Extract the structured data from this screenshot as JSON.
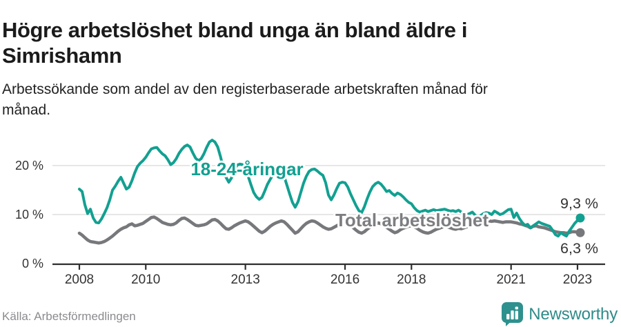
{
  "header": {
    "title_line1": "Högre arbetslöshet bland unga än bland äldre i",
    "title_line2": "Simrishamn",
    "subtitle_line1": "Arbetssökande som andel av den registerbaserade arbetskraften månad för",
    "subtitle_line2": "månad."
  },
  "footer": {
    "source": "Källa: Arbetsförmedlingen",
    "brand": "Newsworthy",
    "brand_color": "#2e8b89"
  },
  "chart_data": {
    "type": "line",
    "title": "Högre arbetslöshet bland unga än bland äldre i Simrishamn",
    "subtitle": "Arbetssökande som andel av den registerbaserade arbetskraften månad för månad.",
    "unit": "%",
    "x_start_year": 2008,
    "x_start_month": 1,
    "x_end_year": 2023,
    "x_end_month": 2,
    "x_ticks": [
      {
        "year": 2008,
        "label": "2008"
      },
      {
        "year": 2010,
        "label": "2010"
      },
      {
        "year": 2013,
        "label": "2013"
      },
      {
        "year": 2016,
        "label": "2016"
      },
      {
        "year": 2018,
        "label": "2018"
      },
      {
        "year": 2021,
        "label": "2021"
      },
      {
        "year": 2023,
        "label": "2023"
      }
    ],
    "y_ticks": [
      {
        "value": 0,
        "label": "0 %"
      },
      {
        "value": 10,
        "label": "10 %"
      },
      {
        "value": 20,
        "label": "20 %"
      }
    ],
    "ylim": [
      0,
      26.5
    ],
    "grid": "horizontal-only",
    "legend_position": "inline-labels",
    "series": [
      {
        "name": "Total arbetslöshet",
        "color": "#77787b",
        "label_color": "#7d7e81",
        "end_label": "6,3 %",
        "last_value": 6.3,
        "values": [
          6.2,
          5.8,
          5.3,
          4.8,
          4.5,
          4.4,
          4.3,
          4.2,
          4.3,
          4.5,
          4.8,
          5.2,
          5.6,
          6.1,
          6.6,
          7.0,
          7.3,
          7.5,
          7.9,
          8.1,
          7.7,
          7.8,
          8.0,
          8.2,
          8.6,
          9.0,
          9.4,
          9.5,
          9.2,
          8.8,
          8.4,
          8.2,
          8.0,
          7.9,
          8.0,
          8.3,
          8.8,
          9.2,
          9.3,
          9.0,
          8.6,
          8.2,
          7.8,
          7.7,
          7.8,
          7.9,
          8.1,
          8.5,
          8.9,
          9.0,
          8.7,
          8.2,
          7.6,
          7.1,
          7.0,
          7.3,
          7.7,
          8.0,
          8.3,
          8.5,
          8.7,
          8.5,
          8.1,
          7.6,
          7.1,
          6.6,
          6.3,
          6.6,
          7.1,
          7.6,
          8.0,
          8.3,
          8.5,
          8.7,
          8.5,
          8.0,
          7.4,
          6.8,
          6.2,
          6.5,
          7.1,
          7.7,
          8.2,
          8.5,
          8.7,
          8.6,
          8.3,
          7.9,
          7.5,
          7.2,
          7.0,
          7.1,
          7.4,
          7.7,
          8.0,
          8.2,
          8.3,
          8.1,
          7.8,
          7.3,
          6.8,
          6.4,
          6.2,
          6.5,
          7.0,
          7.4,
          7.7,
          8.0,
          8.3,
          8.1,
          7.8,
          7.4,
          7.0,
          6.6,
          6.3,
          6.5,
          6.9,
          7.2,
          7.4,
          7.6,
          7.7,
          7.5,
          7.2,
          6.8,
          6.5,
          6.3,
          6.2,
          6.4,
          6.7,
          7.0,
          7.2,
          7.4,
          7.6,
          7.5,
          7.3,
          7.1,
          7.0,
          7.2,
          7.1,
          7.3,
          7.5,
          7.7,
          7.9,
          8.1,
          8.3,
          8.4,
          8.5,
          8.6,
          8.7,
          8.6,
          8.7,
          8.6,
          8.5,
          8.4,
          8.5,
          8.5,
          8.5,
          8.4,
          8.3,
          8.1,
          8.0,
          7.8,
          7.6,
          7.3,
          7.6,
          7.7,
          7.5,
          7.4,
          7.3,
          7.1,
          6.9,
          6.7,
          6.5,
          6.4,
          6.3,
          6.3,
          6.2,
          6.3,
          6.5,
          6.5,
          6.4,
          6.3
        ]
      },
      {
        "name": "18-24-åringar",
        "color": "#12a091",
        "label_color": "#12a091",
        "end_label": "9,3 %",
        "last_value": 9.3,
        "values": [
          15.2,
          14.7,
          12.0,
          10.2,
          11.1,
          9.3,
          8.4,
          8.3,
          9.1,
          10.2,
          11.4,
          13.0,
          15.0,
          15.8,
          16.8,
          17.6,
          16.4,
          15.2,
          15.6,
          16.9,
          18.5,
          19.8,
          20.5,
          21.0,
          21.7,
          22.6,
          23.4,
          23.6,
          23.7,
          23.0,
          22.4,
          22.0,
          21.2,
          20.2,
          20.6,
          21.4,
          22.5,
          23.3,
          23.9,
          24.2,
          23.8,
          22.6,
          21.5,
          21.0,
          21.4,
          22.4,
          23.7,
          24.8,
          25.2,
          24.8,
          23.8,
          21.8,
          19.5,
          17.6,
          16.6,
          17.5,
          19.0,
          20.1,
          20.3,
          20.2,
          19.5,
          17.8,
          16.1,
          14.5,
          13.6,
          13.1,
          13.5,
          14.8,
          16.2,
          17.2,
          18.2,
          18.9,
          19.3,
          18.8,
          17.8,
          16.0,
          14.2,
          12.5,
          11.5,
          12.6,
          14.5,
          16.4,
          17.8,
          18.8,
          19.2,
          19.3,
          18.9,
          18.4,
          18.0,
          16.5,
          14.0,
          13.0,
          14.0,
          15.3,
          16.4,
          16.6,
          16.5,
          15.6,
          14.2,
          13.0,
          11.8,
          10.8,
          10.4,
          11.6,
          13.2,
          14.6,
          15.7,
          16.3,
          16.6,
          16.2,
          15.5,
          14.7,
          14.9,
          14.3,
          13.9,
          14.4,
          14.1,
          13.6,
          13.0,
          12.5,
          12.2,
          11.4,
          10.8,
          10.5,
          10.7,
          10.9,
          10.6,
          10.8,
          11.0,
          10.8,
          10.9,
          11.0,
          11.1,
          10.9,
          10.7,
          10.8,
          10.6,
          10.9,
          10.5,
          10.3,
          10.0,
          10.2,
          10.5,
          9.9,
          9.5,
          9.8,
          10.2,
          10.4,
          10.3,
          10.0,
          10.7,
          10.4,
          10.0,
          10.2,
          10.6,
          11.0,
          11.1,
          9.4,
          10.3,
          9.2,
          8.4,
          7.8,
          8.0,
          7.3,
          7.7,
          8.1,
          8.5,
          8.2,
          8.0,
          7.8,
          7.6,
          6.8,
          5.9,
          5.6,
          6.3,
          5.9,
          5.6,
          6.6,
          7.4,
          8.2,
          8.8,
          9.3
        ]
      }
    ],
    "colors": {
      "grid": "#dddddd",
      "axis": "#2e2e2e",
      "tick_label": "#333333",
      "end_label": "#333333"
    }
  }
}
